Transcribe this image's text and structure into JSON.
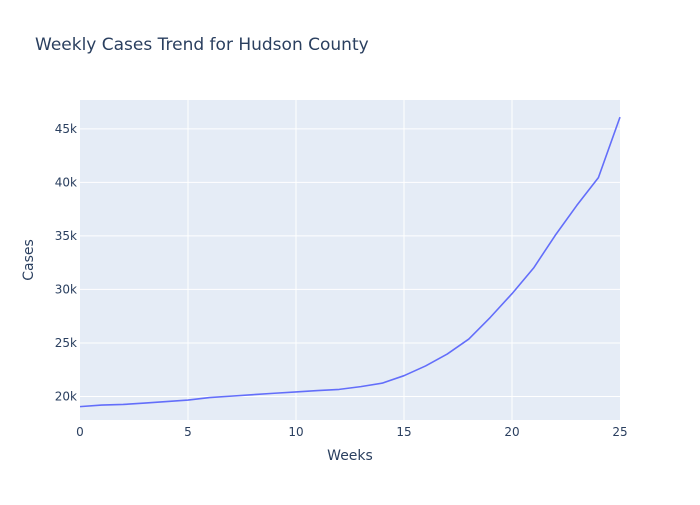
{
  "chart_data": {
    "type": "line",
    "title": "Weekly Cases Trend for Hudson County",
    "xlabel": "Weeks",
    "ylabel": "Cases",
    "xlim": [
      0,
      25
    ],
    "ylim": [
      17800,
      47700
    ],
    "x_ticks": [
      0,
      5,
      10,
      15,
      20,
      25
    ],
    "x_tick_labels": [
      "0",
      "5",
      "10",
      "15",
      "20",
      "25"
    ],
    "y_ticks": [
      20000,
      25000,
      30000,
      35000,
      40000,
      45000
    ],
    "y_tick_labels": [
      "20k",
      "25k",
      "30k",
      "35k",
      "40k",
      "45k"
    ],
    "grid": true,
    "legend": "none",
    "colors": {
      "line": "#636efa",
      "plot_bg": "#e5ecf6",
      "grid": "#ffffff",
      "text": "#2a3f5f"
    },
    "series": [
      {
        "x": [
          0,
          1,
          2,
          3,
          4,
          5,
          6,
          7,
          8,
          9,
          10,
          11,
          12,
          13,
          14,
          15,
          16,
          17,
          18,
          19,
          20,
          21,
          22,
          23,
          24,
          25
        ],
        "y": [
          19050,
          19200,
          19250,
          19380,
          19520,
          19660,
          19900,
          20030,
          20170,
          20300,
          20420,
          20550,
          20660,
          20920,
          21250,
          21940,
          22850,
          23960,
          25360,
          27400,
          29600,
          32000,
          35050,
          37850,
          40450,
          46100
        ]
      }
    ]
  }
}
